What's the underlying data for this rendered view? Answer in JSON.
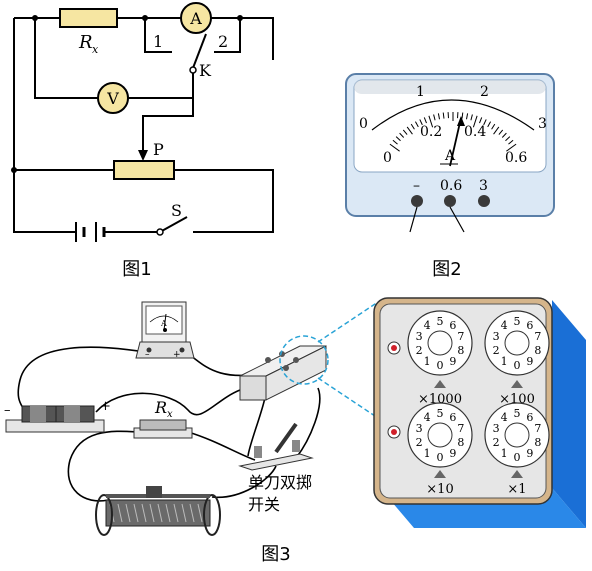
{
  "figure1": {
    "caption": "图1",
    "resistor_label": "R",
    "resistor_sub": "x",
    "ammeter_symbol": "A",
    "voltmeter_symbol": "V",
    "contact_1": "1",
    "contact_2": "2",
    "switch_k": "K",
    "slider_p": "P",
    "switch_s": "S"
  },
  "figure2": {
    "caption": "图2",
    "upper_scale": [
      "0",
      "1",
      "2",
      "3"
    ],
    "lower_scale": [
      "0",
      "0.2",
      "0.4",
      "0.6"
    ],
    "unit": "A",
    "terminals": [
      "–",
      "0.6",
      "3"
    ]
  },
  "figure3": {
    "caption": "图3",
    "rx_label": "R",
    "rx_sub": "x",
    "battery_minus": "–",
    "battery_plus": "+",
    "meter_minus": "–",
    "meter_plus": "+",
    "meter_unit": "A",
    "switch_label_line1": "单刀双掷",
    "switch_label_line2": "开关",
    "dial_labels": [
      "×1000",
      "×100",
      "×10",
      "×1"
    ],
    "dial_digits": [
      "0",
      "1",
      "2",
      "3",
      "4",
      "5",
      "6",
      "7",
      "8",
      "9"
    ]
  }
}
